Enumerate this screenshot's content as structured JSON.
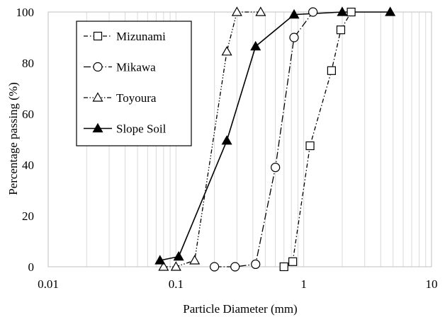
{
  "chart_data": {
    "type": "line",
    "title": "",
    "xlabel": "Particle Diameter (mm)",
    "ylabel": "Percentage passing (%)",
    "x_scale": "log",
    "xlim": [
      0.01,
      10
    ],
    "ylim": [
      0,
      100
    ],
    "x_ticks": [
      "0.01",
      "0.1",
      "1",
      "10"
    ],
    "y_ticks": [
      "0",
      "20",
      "40",
      "60",
      "80",
      "100"
    ],
    "grid": "vertical log gridlines",
    "legend_position": "top-left",
    "series": [
      {
        "name": "Mizunami",
        "marker": "open-square",
        "line_style": "dash-dot",
        "x": [
          0.7,
          0.82,
          1.12,
          1.65,
          1.95,
          2.35
        ],
        "y": [
          0,
          2,
          47.5,
          77,
          93,
          100
        ]
      },
      {
        "name": "Mikawa",
        "marker": "open-circle",
        "line_style": "long-dash-dot",
        "x": [
          0.2,
          0.29,
          0.42,
          0.6,
          0.84,
          1.18
        ],
        "y": [
          0,
          0,
          1,
          39,
          90,
          100
        ]
      },
      {
        "name": "Toyoura",
        "marker": "open-triangle",
        "line_style": "dash-dot-dot",
        "x": [
          0.08,
          0.1,
          0.14,
          0.25,
          0.3,
          0.46
        ],
        "y": [
          0,
          0,
          2.5,
          84.5,
          100,
          100
        ]
      },
      {
        "name": "Slope Soil",
        "marker": "filled-triangle",
        "line_style": "solid",
        "x": [
          0.075,
          0.105,
          0.25,
          0.42,
          0.84,
          2.0,
          4.75
        ],
        "y": [
          2.5,
          4,
          49.5,
          86.5,
          99,
          100,
          100
        ]
      }
    ]
  }
}
